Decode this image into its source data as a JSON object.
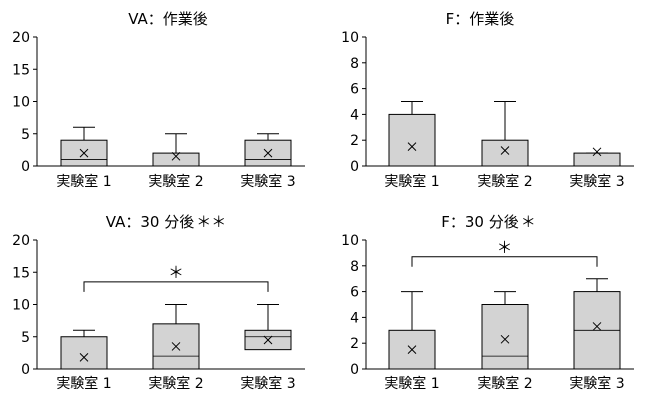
{
  "chart_data": [
    {
      "type": "boxplot",
      "title": "VA：作業後",
      "title_marks": "",
      "ylim": [
        0,
        20
      ],
      "yticks": [
        "0",
        "5",
        "10",
        "15",
        "20"
      ],
      "categories": [
        "実験室 1",
        "実験室 2",
        "実験室 3"
      ],
      "boxes": [
        {
          "min": 0,
          "q1": 0,
          "median": 1,
          "q3": 4,
          "max": 6,
          "mean": 2
        },
        {
          "min": 0,
          "q1": 0,
          "median": 0,
          "q3": 2,
          "max": 5,
          "mean": 1.5
        },
        {
          "min": 0,
          "q1": 0,
          "median": 1,
          "q3": 4,
          "max": 5,
          "mean": 2
        }
      ],
      "significance": []
    },
    {
      "type": "boxplot",
      "title": "F：作業後",
      "title_marks": "",
      "ylim": [
        0,
        10
      ],
      "yticks": [
        "0",
        "2",
        "4",
        "6",
        "8",
        "10"
      ],
      "categories": [
        "実験室 1",
        "実験室 2",
        "実験室 3"
      ],
      "boxes": [
        {
          "min": 0,
          "q1": 0,
          "median": 0,
          "q3": 4,
          "max": 5,
          "mean": 1.5
        },
        {
          "min": 0,
          "q1": 0,
          "median": 0,
          "q3": 2,
          "max": 5,
          "mean": 1.2
        },
        {
          "min": 0,
          "q1": 0,
          "median": 0,
          "q3": 1,
          "max": 1,
          "mean": 1.1
        }
      ],
      "significance": []
    },
    {
      "type": "boxplot",
      "title": "VA：30 分後",
      "title_marks": "＊＊",
      "ylim": [
        0,
        20
      ],
      "yticks": [
        "0",
        "5",
        "10",
        "15",
        "20"
      ],
      "categories": [
        "実験室 1",
        "実験室 2",
        "実験室 3"
      ],
      "boxes": [
        {
          "min": 0,
          "q1": 0,
          "median": 0,
          "q3": 5,
          "max": 6,
          "mean": 1.8
        },
        {
          "min": 0,
          "q1": 0,
          "median": 2,
          "q3": 7,
          "max": 10,
          "mean": 3.5
        },
        {
          "min": 0,
          "q1": 3,
          "median": 5,
          "q3": 6,
          "max": 10,
          "mean": 4.5
        }
      ],
      "significance": [
        {
          "from": 0,
          "to": 2,
          "level": 13.5,
          "label": "＊"
        }
      ]
    },
    {
      "type": "boxplot",
      "title": "F：30 分後",
      "title_marks": "＊",
      "ylim": [
        0,
        10
      ],
      "yticks": [
        "0",
        "2",
        "4",
        "6",
        "8",
        "10"
      ],
      "categories": [
        "実験室 1",
        "実験室 2",
        "実験室 3"
      ],
      "boxes": [
        {
          "min": 0,
          "q1": 0,
          "median": 0,
          "q3": 3,
          "max": 6,
          "mean": 1.5
        },
        {
          "min": 0,
          "q1": 0,
          "median": 1,
          "q3": 5,
          "max": 6,
          "mean": 2.3
        },
        {
          "min": 0,
          "q1": 0,
          "median": 3,
          "q3": 6,
          "max": 7,
          "mean": 3.3
        }
      ],
      "significance": [
        {
          "from": 0,
          "to": 2,
          "level": 8.7,
          "label": "＊"
        }
      ]
    }
  ]
}
